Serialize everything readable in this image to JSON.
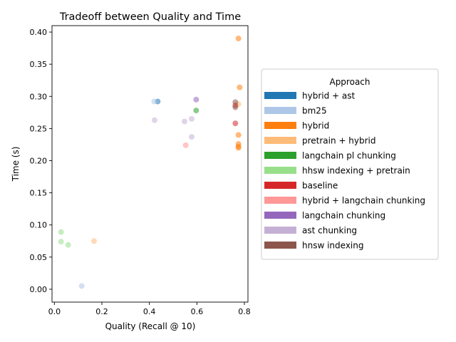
{
  "chart_data": {
    "type": "scatter",
    "title": "Tradeoff between Quality and Time",
    "xlabel": "Quality (Recall @ 10)",
    "ylabel": "Time (s)",
    "xlim": [
      -0.01,
      0.815
    ],
    "ylim": [
      -0.02,
      0.41
    ],
    "xticks": [
      0.0,
      0.2,
      0.4,
      0.6,
      0.8
    ],
    "xtick_labels": [
      "0.0",
      "0.2",
      "0.4",
      "0.6",
      "0.8"
    ],
    "yticks": [
      0.0,
      0.05,
      0.1,
      0.15,
      0.2,
      0.25,
      0.3,
      0.35,
      0.4
    ],
    "ytick_labels": [
      "0.00",
      "0.05",
      "0.10",
      "0.15",
      "0.20",
      "0.25",
      "0.30",
      "0.35",
      "0.40"
    ],
    "grid": false,
    "legend_title": "Approach",
    "legend_position": "outside-right",
    "series": [
      {
        "name": "hybrid + ast",
        "color": "#1f77b4",
        "points": [
          [
            0.435,
            0.292
          ]
        ]
      },
      {
        "name": "bm25",
        "color": "#aec7e8",
        "points": [
          [
            0.42,
            0.292
          ],
          [
            0.115,
            0.005
          ]
        ]
      },
      {
        "name": "hybrid",
        "color": "#ff7f0e",
        "points": [
          [
            0.775,
            0.39
          ],
          [
            0.78,
            0.314
          ],
          [
            0.775,
            0.24
          ],
          [
            0.775,
            0.226
          ],
          [
            0.775,
            0.222
          ],
          [
            0.775,
            0.22
          ]
        ]
      },
      {
        "name": "pretrain + hybrid",
        "color": "#ffbb78",
        "points": [
          [
            0.775,
            0.288
          ],
          [
            0.167,
            0.075
          ]
        ]
      },
      {
        "name": "langchain pl chunking",
        "color": "#2ca02c",
        "points": [
          [
            0.597,
            0.278
          ]
        ]
      },
      {
        "name": "hhsw indexing + pretrain",
        "color": "#98df8a",
        "points": [
          [
            0.028,
            0.089
          ],
          [
            0.028,
            0.074
          ],
          [
            0.058,
            0.069
          ]
        ]
      },
      {
        "name": "baseline",
        "color": "#d62728",
        "points": [
          [
            0.762,
            0.286
          ],
          [
            0.762,
            0.258
          ]
        ]
      },
      {
        "name": "hybrid + langchain chunking",
        "color": "#ff9896",
        "points": [
          [
            0.553,
            0.224
          ]
        ]
      },
      {
        "name": "langchain chunking",
        "color": "#9467bd",
        "points": [
          [
            0.597,
            0.295
          ]
        ]
      },
      {
        "name": "ast chunking",
        "color": "#c5b0d5",
        "points": [
          [
            0.422,
            0.263
          ],
          [
            0.548,
            0.261
          ],
          [
            0.578,
            0.265
          ],
          [
            0.578,
            0.237
          ]
        ]
      },
      {
        "name": "hnsw indexing",
        "color": "#8c564b",
        "points": [
          [
            0.762,
            0.291
          ],
          [
            0.762,
            0.283
          ]
        ]
      }
    ]
  }
}
